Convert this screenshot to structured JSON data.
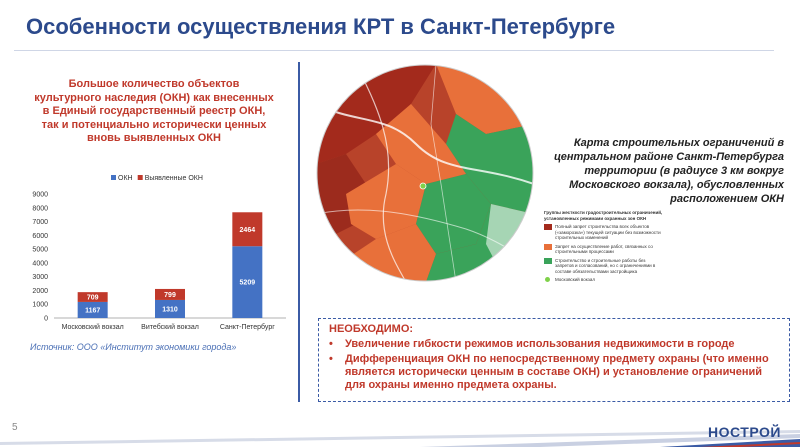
{
  "title": "Особенности осуществления КРТ в Санкт-Петербурге",
  "left_caption": "Большое количество объектов культурного наследия (ОКН) как внесенных в Единый государственный реестр ОКН, так и потенциально исторически ценных вновь выявленных ОКН",
  "chart_data": {
    "type": "bar",
    "stacked": true,
    "categories": [
      "Московский вокзал",
      "Витебский вокзал",
      "Санкт-Петербург"
    ],
    "series": [
      {
        "name": "ОКН",
        "values": [
          1167,
          1310,
          5209
        ],
        "color": "#4472c4"
      },
      {
        "name": "Выявленные ОКН",
        "values": [
          709,
          799,
          2464
        ],
        "color": "#c0392b"
      }
    ],
    "ylim": [
      0,
      9000
    ],
    "yticks": [
      0,
      1000,
      2000,
      3000,
      4000,
      5000,
      6000,
      7000,
      8000,
      9000
    ],
    "legend": "top-center"
  },
  "source": "Источник: ООО «Институт экономики города»",
  "map_caption": "Карта строительных ограничений в центральном районе Санкт-Петербурга территории (в радиусе 3 км вокруг Московского вокзала), обусловленных расположением ОКН",
  "map_legend": {
    "title": "Группы жесткости градостроительных ограничений, установленных режимами охранных зон ОКН",
    "items": [
      {
        "label": "Полный запрет строительства всех объектов («заморозка») текущей ситуации без возможности строительных изменений",
        "color": "#a32a1c"
      },
      {
        "label": "Запрет на осуществление работ, связанных со строительными процессами",
        "color": "#e8703a"
      },
      {
        "label": "Строительство и строительные работы без запретов и согласований, но с ограничениями в составе обязательствами застройщика",
        "color": "#3aa35a"
      }
    ],
    "station_label": "Московский вокзал"
  },
  "necessary": {
    "title": "НЕОБХОДИМО:",
    "items": [
      "Увеличение гибкости режимов использования недвижимости в городе",
      "Дифференциация ОКН по непосредственному предмету охраны (что именно является исторически ценным в составе ОКН) и установление ограничений для охраны именно предмета охраны."
    ]
  },
  "page_number": "5",
  "logo": "НОСТРОЙ"
}
